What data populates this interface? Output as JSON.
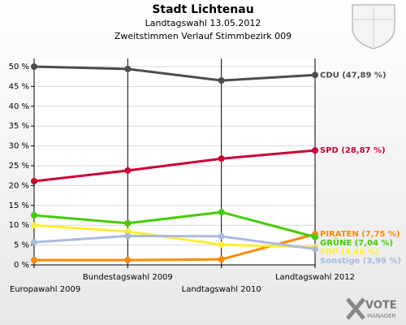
{
  "chart_data": {
    "type": "line",
    "title": "Stadt Lichtenau",
    "subtitle": [
      "Landtagswahl 13.05.2012",
      "Zweitstimmen Verlauf Stimmbezirk 009"
    ],
    "categories": [
      "Europawahl 2009",
      "Bundestagswahl 2009",
      "Landtagswahl 2010",
      "Landtagswahl 2012"
    ],
    "ylim": [
      0,
      50
    ],
    "yticks": [
      {
        "value": 0,
        "label": "0 %"
      },
      {
        "value": 5,
        "label": "5 %"
      },
      {
        "value": 10,
        "label": "10 %"
      },
      {
        "value": 15,
        "label": "15 %"
      },
      {
        "value": 20,
        "label": "20 %"
      },
      {
        "value": 25,
        "label": "25 %"
      },
      {
        "value": 30,
        "label": "30 %"
      },
      {
        "value": 35,
        "label": "35 %"
      },
      {
        "value": 40,
        "label": "40 %"
      },
      {
        "value": 45,
        "label": "45 %"
      },
      {
        "value": 50,
        "label": "50 %"
      }
    ],
    "grid": true,
    "series": [
      {
        "label": "CDU (47,89 %)",
        "color": "#4d4d4d",
        "values": [
          50.0,
          49.4,
          46.5,
          47.89
        ]
      },
      {
        "label": "SPD (28,87 %)",
        "color": "#cc0033",
        "values": [
          21.1,
          23.8,
          26.8,
          28.87
        ]
      },
      {
        "label": "PIRATEN (7,75 %)",
        "color": "#ff8800",
        "values": [
          1.2,
          1.2,
          1.4,
          7.75
        ]
      },
      {
        "label": "GRÜNE (7,04 %)",
        "color": "#44cc00",
        "values": [
          12.5,
          10.5,
          13.3,
          7.04
        ]
      },
      {
        "label": "FDP (4,46 %)",
        "color": "#ffee33",
        "values": [
          10.0,
          8.4,
          5.1,
          4.46
        ]
      },
      {
        "label": "Sonstige (3,99 %)",
        "color": "#aabbdd",
        "values": [
          5.7,
          7.3,
          7.2,
          3.99
        ]
      }
    ],
    "logo": [
      "VOTE",
      "MANAGER"
    ]
  }
}
